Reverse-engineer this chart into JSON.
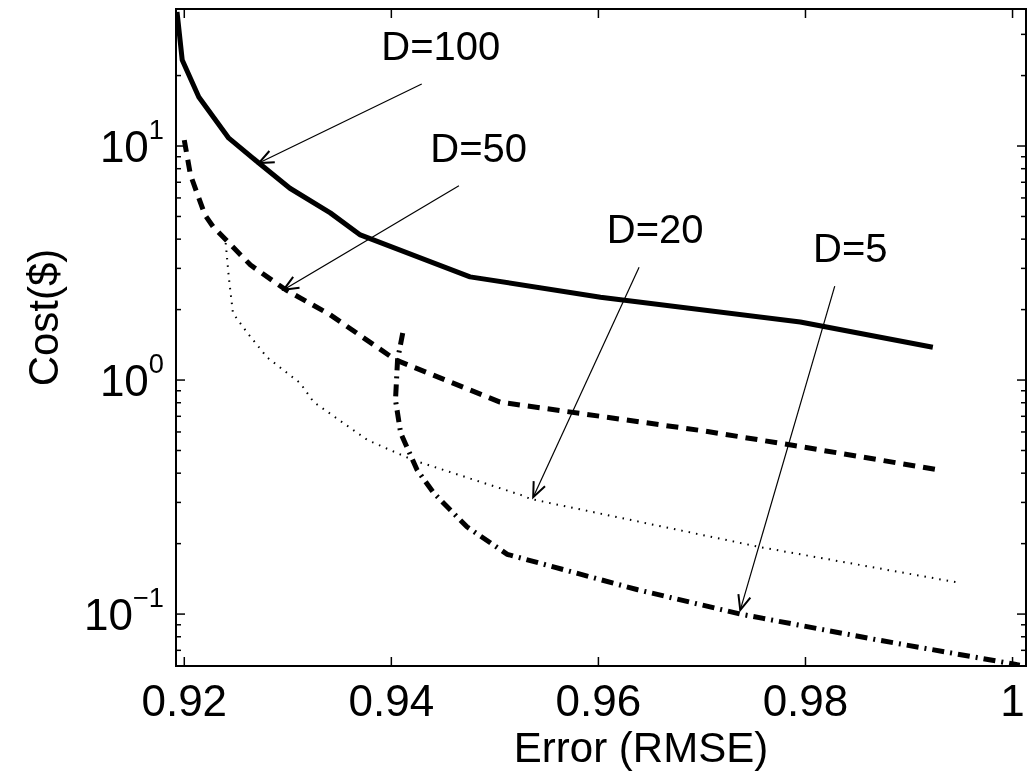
{
  "chart_data": {
    "type": "line",
    "xlabel": "Error (RMSE)",
    "ylabel": "Cost($)",
    "log": "y",
    "grid": false,
    "xlim": [
      0.9192,
      1.0013
    ],
    "xticks": [
      0.92,
      0.94,
      0.96,
      0.98,
      1
    ],
    "ylim": [
      0.06,
      38.5
    ],
    "yticks": [
      {
        "value": 0.07,
        "label": null
      },
      {
        "value": 0.08,
        "label": null
      },
      {
        "value": 0.09,
        "label": null
      },
      {
        "value": 0.1,
        "label": "10$^{−1}$"
      },
      {
        "value": 0.2,
        "label": null
      },
      {
        "value": 0.3,
        "label": null
      },
      {
        "value": 0.4,
        "label": null
      },
      {
        "value": 0.5,
        "label": null
      },
      {
        "value": 0.6,
        "label": null
      },
      {
        "value": 0.7,
        "label": null
      },
      {
        "value": 0.8,
        "label": null
      },
      {
        "value": 0.9,
        "label": null
      },
      {
        "value": 1,
        "label": "10$^{0}$"
      },
      {
        "value": 2,
        "label": null
      },
      {
        "value": 3,
        "label": null
      },
      {
        "value": 4,
        "label": null
      },
      {
        "value": 5,
        "label": null
      },
      {
        "value": 6,
        "label": null
      },
      {
        "value": 7,
        "label": null
      },
      {
        "value": 8,
        "label": null
      },
      {
        "value": 9,
        "label": null
      },
      {
        "value": 10,
        "label": "10$^{1}$"
      },
      {
        "value": 20,
        "label": null
      },
      {
        "value": 30,
        "label": null
      }
    ],
    "series": [
      {
        "color": "#000000",
        "line_style": "solid",
        "x": [
          0.9193,
          0.9198,
          0.9214,
          0.9243,
          0.9272,
          0.9302,
          0.9341,
          0.937,
          0.9476,
          0.9602,
          0.9795,
          0.9923
        ],
        "values": [
          37.4,
          23.3,
          16.2,
          10.8,
          8.46,
          6.6,
          5.18,
          4.17,
          2.76,
          2.26,
          1.77,
          1.38
        ]
      },
      {
        "color": "#000000",
        "line_style": "dashed",
        "x": [
          0.92,
          0.9206,
          0.922,
          0.9228,
          0.9264,
          0.9298,
          0.9341,
          0.9404,
          0.9505,
          0.9703,
          0.9789,
          0.993
        ],
        "values": [
          10.6,
          7.52,
          5.07,
          4.51,
          3.1,
          2.43,
          1.9,
          1.22,
          0.805,
          0.605,
          0.525,
          0.412
        ]
      },
      {
        "color": "#000000",
        "line_style": "dotted",
        "x": [
          0.924,
          0.9243,
          0.9247,
          0.9261,
          0.928,
          0.9312,
          0.9325,
          0.9377,
          0.9421,
          0.9525,
          0.9535,
          0.9757,
          0.9949
        ],
        "values": [
          3.85,
          2.75,
          1.93,
          1.59,
          1.25,
          0.97,
          0.805,
          0.554,
          0.455,
          0.323,
          0.31,
          0.193,
          0.136
        ]
      },
      {
        "color": "#000000",
        "line_style": "dashdot",
        "x": [
          0.9411,
          0.9406,
          0.9404,
          0.9409,
          0.9425,
          0.9441,
          0.9473,
          0.9512,
          0.9638,
          0.9737,
          0.987,
          1.0007
        ],
        "values": [
          1.59,
          1.22,
          0.821,
          0.594,
          0.412,
          0.329,
          0.236,
          0.18,
          0.127,
          0.1,
          0.0775,
          0.0605
        ]
      }
    ],
    "annotations": [
      {
        "text": "D=100",
        "x": 0.9272,
        "y": 8.46
      },
      {
        "text": "D=50",
        "x": 0.9296,
        "y": 2.43
      },
      {
        "text": "D=20",
        "x": 0.9537,
        "y": 0.316
      },
      {
        "text": "D=5",
        "x": 0.9737,
        "y": 0.104
      }
    ]
  }
}
